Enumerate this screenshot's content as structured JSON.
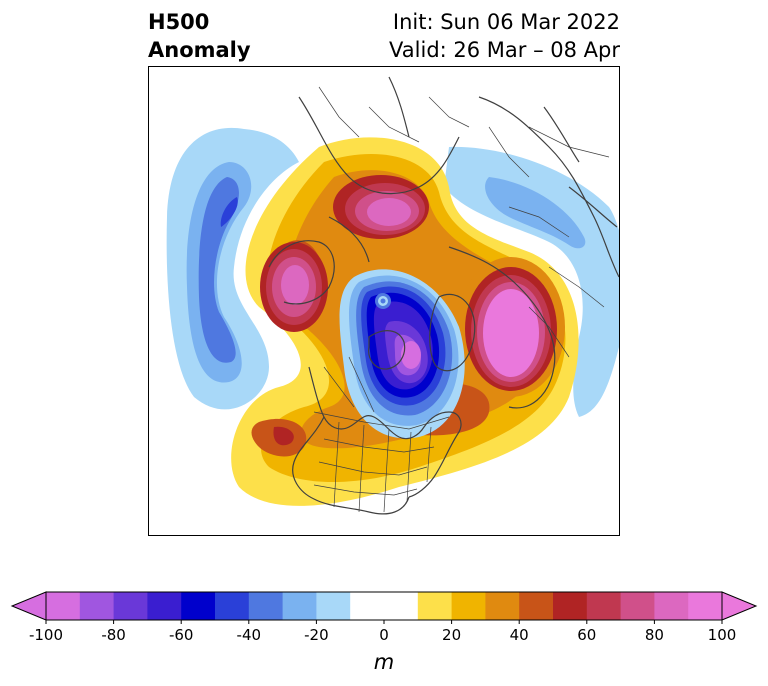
{
  "title": {
    "left_line1": "H500",
    "left_line2": "Anomaly",
    "right_line1": "Init: Sun 06 Mar 2022",
    "right_line2": "Valid: 26 Mar – 08 Apr"
  },
  "colorbar": {
    "unit": "m",
    "ticks": [
      "-100",
      "-80",
      "-60",
      "-40",
      "-20",
      "0",
      "20",
      "40",
      "60",
      "80",
      "100"
    ],
    "range": [
      -100,
      100
    ],
    "step": 10,
    "extend": "both",
    "colors": [
      "#d66ee0",
      "#a056e0",
      "#6a38d8",
      "#3a1ed0",
      "#0000cc",
      "#2a40d8",
      "#4f78e0",
      "#7ab2f0",
      "#a8d8f8",
      "#ffffff",
      "#ffffff",
      "#fde04a",
      "#f0b400",
      "#e08a10",
      "#c85418",
      "#b02424",
      "#c03850",
      "#d0508a",
      "#dc68c0",
      "#ea78dc"
    ],
    "under_color": "#d66ee0",
    "over_color": "#ea78dc"
  },
  "map": {
    "projection": "north-polar-stereographic",
    "region": "North America / North Pole",
    "coastline_color": "#404040",
    "border_color": "#404040"
  }
}
